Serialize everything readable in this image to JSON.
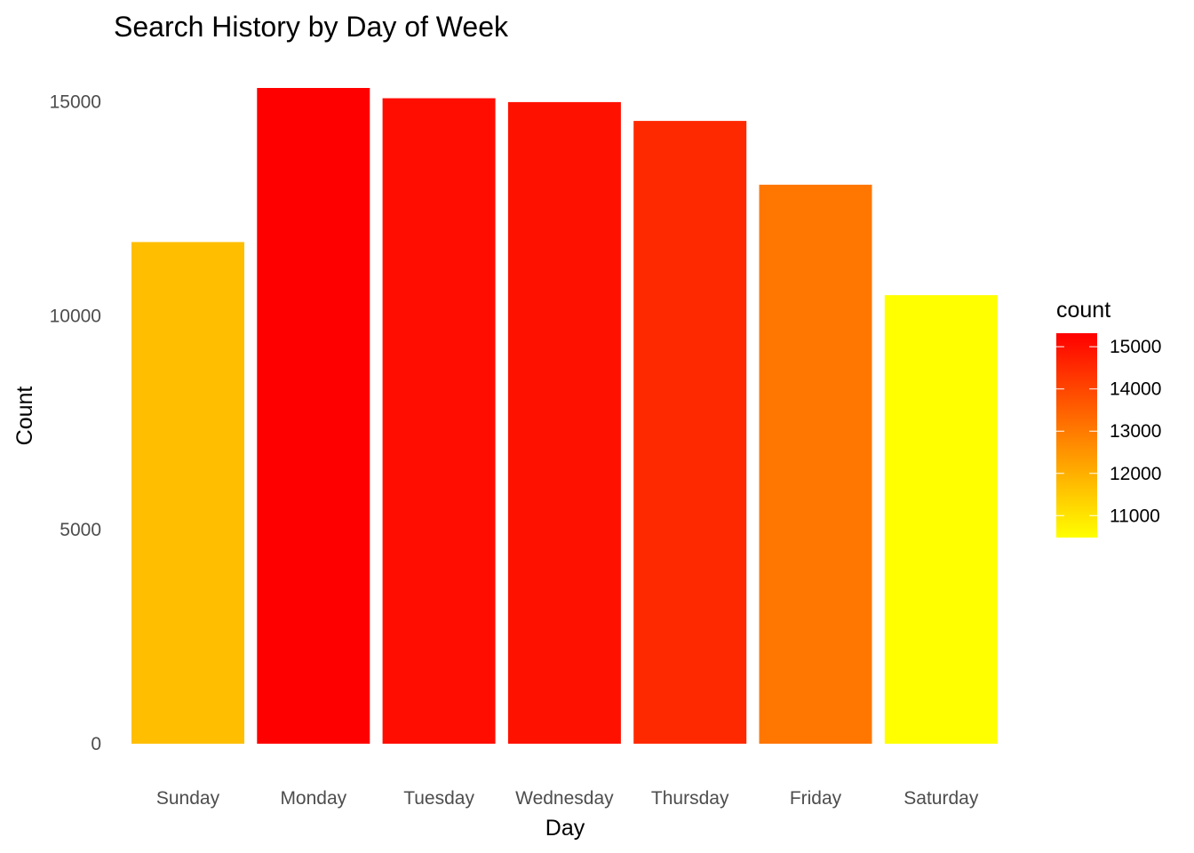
{
  "chart_data": {
    "type": "bar",
    "title": "Search History by Day of Week",
    "xlabel": "Day",
    "ylabel": "Count",
    "categories": [
      "Sunday",
      "Monday",
      "Tuesday",
      "Wednesday",
      "Thursday",
      "Friday",
      "Saturday"
    ],
    "values": [
      11720,
      15320,
      15080,
      14990,
      14550,
      13060,
      10480
    ],
    "ylim": [
      0,
      15320
    ],
    "yticks": [
      0,
      5000,
      10000,
      15000
    ],
    "grid": false,
    "legend": {
      "title": "count",
      "position": "right",
      "ticks": [
        11000,
        12000,
        13000,
        14000,
        15000
      ],
      "range": [
        10480,
        15320
      ],
      "color_low": "#FFFF00",
      "color_high": "#FF0000"
    }
  }
}
